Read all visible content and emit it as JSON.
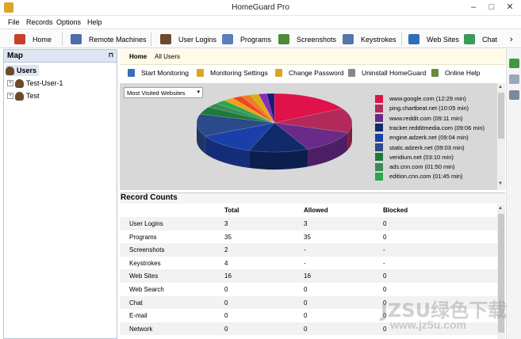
{
  "window": {
    "title": "HomeGuard Pro"
  },
  "menu": [
    "File",
    "Records",
    "Options",
    "Help"
  ],
  "toolbar": [
    {
      "label": "Home",
      "icon": "home-icon",
      "color": "#c8402a"
    },
    {
      "label": "Remote Machines",
      "icon": "monitor-icon",
      "color": "#4a6ea8"
    },
    {
      "label": "User Logins",
      "icon": "user-icon",
      "color": "#6b4a2c"
    },
    {
      "label": "Programs",
      "icon": "window-icon",
      "color": "#5a7fb8"
    },
    {
      "label": "Screenshots",
      "icon": "picture-icon",
      "color": "#4e8a3a"
    },
    {
      "label": "Keystrokes",
      "icon": "keyboard-icon",
      "color": "#5577aa"
    },
    {
      "label": "Web Sites",
      "icon": "globe-icon",
      "color": "#2f6fb8"
    },
    {
      "label": "Chat",
      "icon": "chat-icon",
      "color": "#3c9a5a"
    }
  ],
  "map": {
    "title": "Map",
    "root": "Users",
    "children": [
      "Test-User-1",
      "Test"
    ]
  },
  "breadcrumb": [
    "Home",
    "All Users"
  ],
  "actions": [
    {
      "label": "Start Monitoring",
      "icon": "play-icon",
      "color": "#3a6fb5"
    },
    {
      "label": "Monitoring Settings",
      "icon": "settings-icon",
      "color": "#d9a62a"
    },
    {
      "label": "Change Password",
      "icon": "lock-icon",
      "color": "#d9a62a"
    },
    {
      "label": "Uninstall HomeGuard",
      "icon": "trash-icon",
      "color": "#888888"
    },
    {
      "label": "Online Help",
      "icon": "book-icon",
      "color": "#6a8a3a"
    }
  ],
  "chart_data": {
    "type": "pie",
    "selector": "Most Visited Websites",
    "series": [
      {
        "name": "www.google.com (12:29 min)",
        "value": 749,
        "color": "#e0124a"
      },
      {
        "name": "ping.chartbeat.net (10:05 min)",
        "value": 605,
        "color": "#b22a5a"
      },
      {
        "name": "www.reddit.com (09:11 min)",
        "value": 551,
        "color": "#6a2a8a"
      },
      {
        "name": "tracker.redditmedia.com (09:06 min)",
        "value": 546,
        "color": "#102a6a"
      },
      {
        "name": "engine.adzerk.net (09:04 min)",
        "value": 544,
        "color": "#1a3fa8"
      },
      {
        "name": "static.adzerk.net (09:03 min)",
        "value": 543,
        "color": "#2a4a8a"
      },
      {
        "name": "veridium.net (03:10 min)",
        "value": 190,
        "color": "#1e7a3a"
      },
      {
        "name": "ads.cnn.com (01:50 min)",
        "value": 110,
        "color": "#3a8a5a"
      },
      {
        "name": "edition.cnn.com (01:45 min)",
        "value": 105,
        "color": "#2aa84a"
      }
    ],
    "extra_slices": [
      {
        "value": 95,
        "color": "#f2a020"
      },
      {
        "value": 90,
        "color": "#e84a1a"
      },
      {
        "value": 85,
        "color": "#f07a2a"
      },
      {
        "value": 80,
        "color": "#d4b20a"
      },
      {
        "value": 75,
        "color": "#8a2ab8"
      },
      {
        "value": 70,
        "color": "#1a1a7a"
      }
    ]
  },
  "records": {
    "title": "Record Counts",
    "headers": [
      "Total",
      "Allowed",
      "Blocked"
    ],
    "rows": [
      {
        "name": "User Logins",
        "total": "3",
        "allowed": "3",
        "blocked": "0"
      },
      {
        "name": "Programs",
        "total": "35",
        "allowed": "35",
        "blocked": "0"
      },
      {
        "name": "Screenshots",
        "total": "2",
        "allowed": "-",
        "blocked": "-"
      },
      {
        "name": "Keystrokes",
        "total": "4",
        "allowed": "-",
        "blocked": "-"
      },
      {
        "name": "Web Sites",
        "total": "16",
        "allowed": "16",
        "blocked": "0"
      },
      {
        "name": "Web Search",
        "total": "0",
        "allowed": "0",
        "blocked": "0"
      },
      {
        "name": "Chat",
        "total": "0",
        "allowed": "0",
        "blocked": "0"
      },
      {
        "name": "E-mail",
        "total": "0",
        "allowed": "0",
        "blocked": "0"
      },
      {
        "name": "Network",
        "total": "0",
        "allowed": "0",
        "blocked": "0"
      }
    ]
  },
  "watermark": {
    "line1": "JZSU绿色下载",
    "line2": "www.jz5u.com"
  }
}
